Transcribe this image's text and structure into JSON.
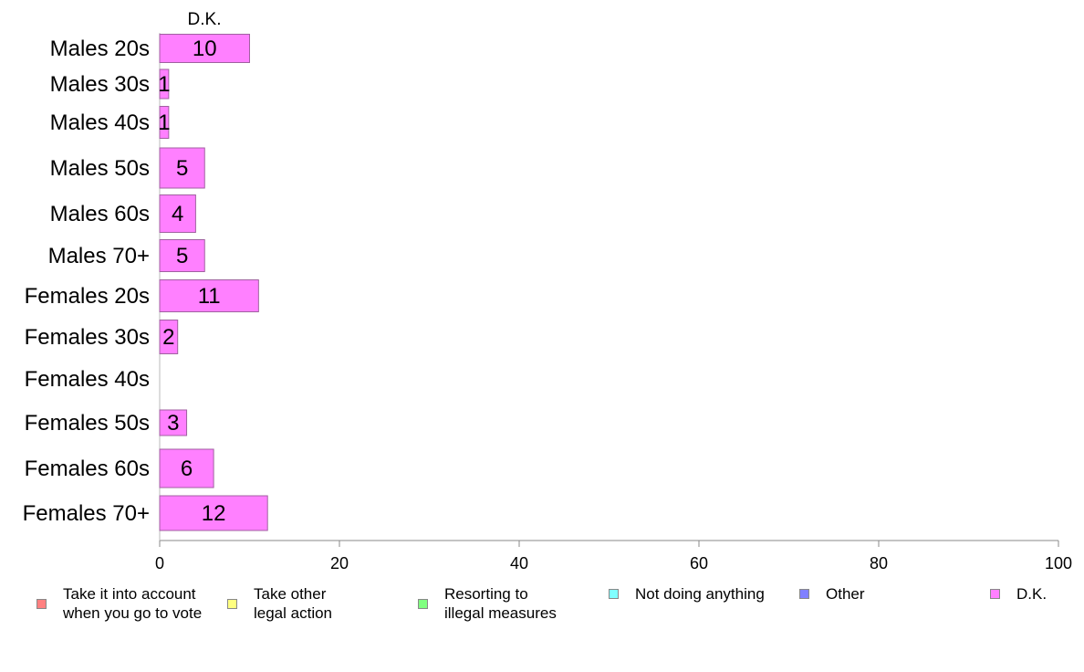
{
  "chart_data": {
    "type": "bar",
    "orientation": "horizontal",
    "title": "D.K.",
    "categories": [
      "Males 20s",
      "Males 30s",
      "Males 40s",
      "Males 50s",
      "Males 60s",
      "Males 70+",
      "Females 20s",
      "Females 30s",
      "Females 40s",
      "Females 50s",
      "Females 60s",
      "Females 70+"
    ],
    "series": [
      {
        "name": "D.K.",
        "color": "#ff80ff",
        "values": [
          10,
          1,
          1,
          5,
          4,
          5,
          11,
          2,
          0,
          3,
          6,
          12
        ],
        "labels": [
          "10",
          "1",
          "1",
          "5",
          "4",
          "5",
          "11",
          "2",
          "",
          "3",
          "6",
          "12"
        ]
      }
    ],
    "xlim": [
      0,
      100
    ],
    "xticks": [
      0,
      20,
      40,
      60,
      80,
      100
    ],
    "xlabel": "",
    "ylabel": "",
    "grid": false,
    "legend_position": "bottom"
  },
  "legend": [
    {
      "label": "Take it into account\nwhen you go to vote",
      "color": "#ff8080"
    },
    {
      "label": "Take other\nlegal action",
      "color": "#ffff80"
    },
    {
      "label": "Resorting to\nillegal measures",
      "color": "#80ff80"
    },
    {
      "label": "Not doing anything",
      "color": "#80ffff"
    },
    {
      "label": "Other",
      "color": "#8080ff"
    },
    {
      "label": "D.K.",
      "color": "#ff80ff"
    }
  ]
}
